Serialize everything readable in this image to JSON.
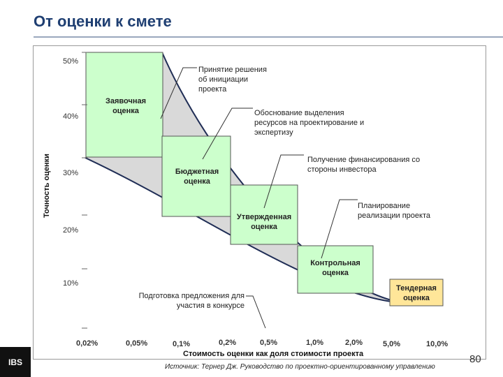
{
  "title": "От оценки к смете",
  "y_axis_label": "Точность оценки",
  "x_axis_label": "Стоимость оценки как доля стоимости проекта",
  "y_ticks": [
    "50%",
    "40%",
    "30%",
    "20%",
    "10%"
  ],
  "x_ticks": [
    "0,02%",
    "0,05%",
    "0,1%",
    "0,2%",
    "0,5%",
    "1,0%",
    "2,0%",
    "5,0%",
    "10,0%"
  ],
  "boxes": [
    {
      "label": "Заявочная оценка",
      "lines": [
        "Заявочная",
        "оценка"
      ]
    },
    {
      "label": "Бюджетная оценка",
      "lines": [
        "Бюджетная",
        "оценка"
      ]
    },
    {
      "label": "Утвержденная оценка",
      "lines": [
        "Утвержденная",
        "оценка"
      ]
    },
    {
      "label": "Контрольная оценка",
      "lines": [
        "Контрольная",
        "оценка"
      ]
    },
    {
      "label": "Тендерная оценка",
      "lines": [
        "Тендерная",
        "оценка"
      ]
    }
  ],
  "callouts": [
    {
      "label": "Принятие решения об инициации проекта",
      "lines": [
        "Принятие решения",
        "об инициации",
        "проекта"
      ]
    },
    {
      "label": "Обоснование выделения ресурсов на проектирование и экспертизу",
      "lines": [
        "Обоснование выделения",
        "ресурсов на проектирование и",
        "экспертизу"
      ]
    },
    {
      "label": "Получение финансирования со стороны инвестора",
      "lines": [
        "Получение финансирования со",
        "стороны инвестора"
      ]
    },
    {
      "label": "Планирование реализации проекта",
      "lines": [
        "Планирование",
        "реализации проекта"
      ]
    },
    {
      "label": "Подготовка предложения для участия в конкурсе",
      "lines": [
        "Подготовка предложения для",
        "участия в конкурсе"
      ]
    }
  ],
  "colors": {
    "box_fill": "#ccffcc",
    "tender_fill": "#ffe699",
    "band_fill": "#d9d9d9",
    "curve": "#1f2d55",
    "title": "#1f3f72"
  },
  "logo": "IBS",
  "page_number": "80",
  "source": "Источник: Тернер Дж. Руководство по проектно-ориентированному управлению"
}
